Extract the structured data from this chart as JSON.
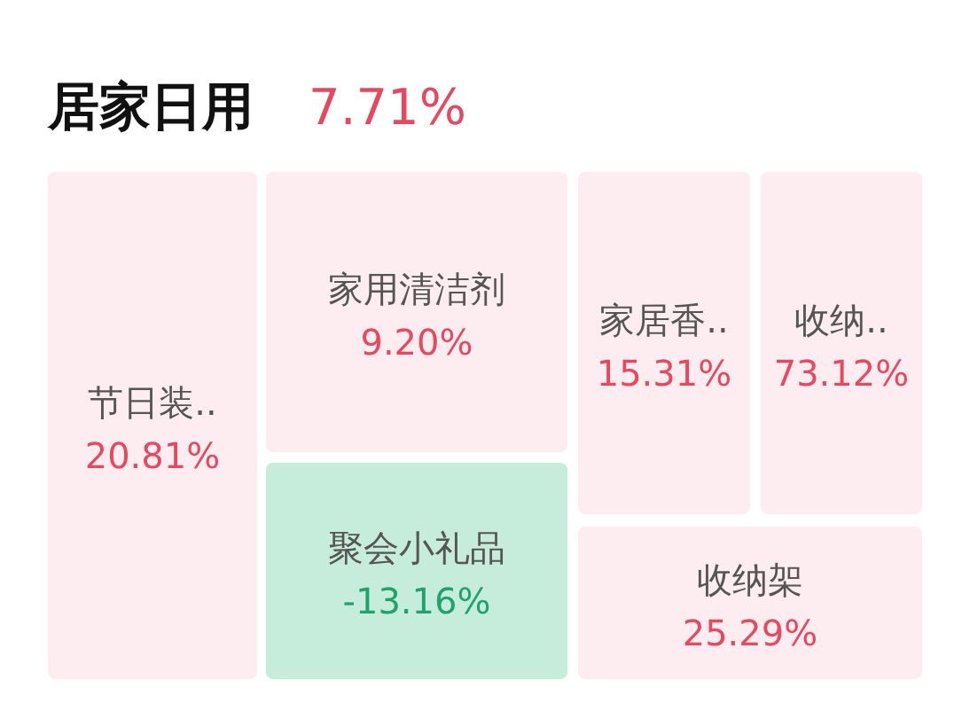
{
  "chart_data": {
    "type": "other",
    "title": "居家日用",
    "subtitle": "7.71%",
    "categories": [
      "节日装..",
      "家用清洁剂",
      "聚会小礼品",
      "家居香..",
      "收纳..",
      "收纳架"
    ],
    "values": [
      20.81,
      9.2,
      -13.16,
      15.31,
      73.12,
      25.29
    ],
    "value_labels": [
      "20.81%",
      "9.20%",
      "-13.16%",
      "15.31%",
      "73.12%",
      "25.29%"
    ],
    "colors": [
      "#fdedf0",
      "#fdedf0",
      "#c6ecdc",
      "#fdedf0",
      "#fdedf0",
      "#fdedf0"
    ]
  }
}
